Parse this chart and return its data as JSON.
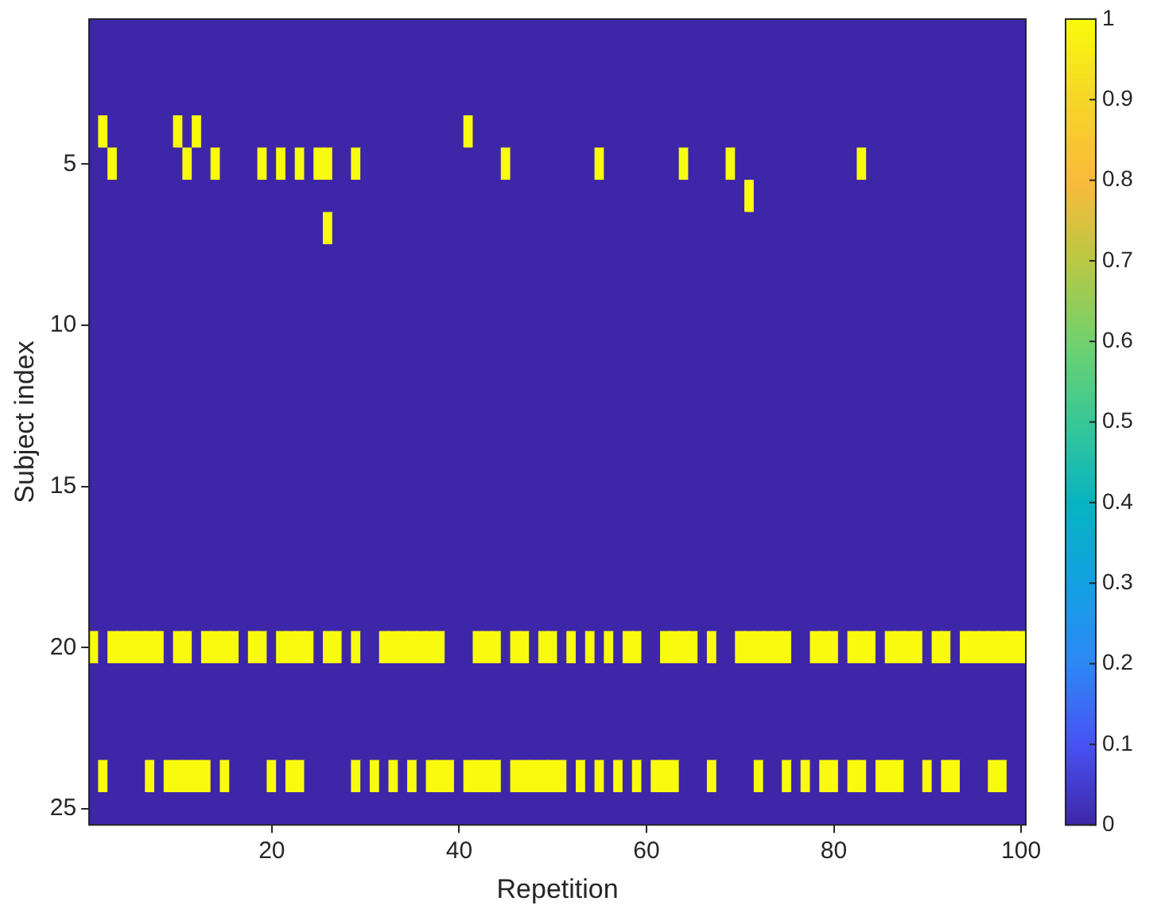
{
  "chart_data": {
    "type": "heatmap",
    "xlabel": "Repetition",
    "ylabel": "Subject index",
    "categories": [
      null,
      null,
      null,
      null,
      null,
      null,
      null,
      null,
      null,
      null,
      null,
      null,
      null,
      null,
      null,
      null,
      null,
      null,
      null,
      "20",
      null,
      null,
      null,
      null,
      null,
      null,
      null,
      null,
      null,
      null,
      null,
      null,
      null,
      null,
      null,
      null,
      null,
      null,
      null,
      "40",
      null,
      null,
      null,
      null,
      null,
      null,
      null,
      null,
      null,
      null,
      null,
      null,
      null,
      null,
      null,
      null,
      null,
      null,
      null,
      "60",
      null,
      null,
      null,
      null,
      null,
      null,
      null,
      null,
      null,
      null,
      null,
      null,
      null,
      null,
      null,
      null,
      null,
      null,
      null,
      "80",
      null,
      null,
      null,
      null,
      null,
      null,
      null,
      null,
      null,
      null,
      null,
      null,
      null,
      null,
      null,
      null,
      null,
      null,
      null,
      "100"
    ],
    "y_categories": [
      null,
      null,
      null,
      null,
      "5",
      null,
      null,
      null,
      null,
      "10",
      null,
      null,
      null,
      null,
      "15",
      null,
      null,
      null,
      null,
      "20",
      null,
      null,
      null,
      null,
      "25"
    ],
    "cells": [
      [
        0,
        0,
        0,
        0,
        0,
        0,
        0,
        0,
        0,
        0,
        0,
        0,
        0,
        0,
        0,
        0,
        0,
        0,
        0,
        0,
        0,
        0,
        0,
        0,
        0,
        0,
        0,
        0,
        0,
        0,
        0,
        0,
        0,
        0,
        0,
        0,
        0,
        0,
        0,
        0,
        0,
        0,
        0,
        0,
        0,
        0,
        0,
        0,
        0,
        0,
        0,
        0,
        0,
        0,
        0,
        0,
        0,
        0,
        0,
        0,
        0,
        0,
        0,
        0,
        0,
        0,
        0,
        0,
        0,
        0,
        0,
        0,
        0,
        0,
        0,
        0,
        0,
        0,
        0,
        0,
        0,
        0,
        0,
        0,
        0,
        0,
        0,
        0,
        0,
        0,
        0,
        0,
        0,
        0,
        0,
        0,
        0,
        0,
        0,
        0
      ],
      [
        0,
        0,
        0,
        0,
        0,
        0,
        0,
        0,
        0,
        0,
        0,
        0,
        0,
        0,
        0,
        0,
        0,
        0,
        0,
        0,
        0,
        0,
        0,
        0,
        0,
        0,
        0,
        0,
        0,
        0,
        0,
        0,
        0,
        0,
        0,
        0,
        0,
        0,
        0,
        0,
        0,
        0,
        0,
        0,
        0,
        0,
        0,
        0,
        0,
        0,
        0,
        0,
        0,
        0,
        0,
        0,
        0,
        0,
        0,
        0,
        0,
        0,
        0,
        0,
        0,
        0,
        0,
        0,
        0,
        0,
        0,
        0,
        0,
        0,
        0,
        0,
        0,
        0,
        0,
        0,
        0,
        0,
        0,
        0,
        0,
        0,
        0,
        0,
        0,
        0,
        0,
        0,
        0,
        0,
        0,
        0,
        0,
        0,
        0,
        0
      ],
      [
        0,
        0,
        0,
        0,
        0,
        0,
        0,
        0,
        0,
        0,
        0,
        0,
        0,
        0,
        0,
        0,
        0,
        0,
        0,
        0,
        0,
        0,
        0,
        0,
        0,
        0,
        0,
        0,
        0,
        0,
        0,
        0,
        0,
        0,
        0,
        0,
        0,
        0,
        0,
        0,
        0,
        0,
        0,
        0,
        0,
        0,
        0,
        0,
        0,
        0,
        0,
        0,
        0,
        0,
        0,
        0,
        0,
        0,
        0,
        0,
        0,
        0,
        0,
        0,
        0,
        0,
        0,
        0,
        0,
        0,
        0,
        0,
        0,
        0,
        0,
        0,
        0,
        0,
        0,
        0,
        0,
        0,
        0,
        0,
        0,
        0,
        0,
        0,
        0,
        0,
        0,
        0,
        0,
        0,
        0,
        0,
        0,
        0,
        0,
        0
      ],
      [
        0,
        1,
        0,
        0,
        0,
        0,
        0,
        0,
        0,
        1,
        0,
        1,
        0,
        0,
        0,
        0,
        0,
        0,
        0,
        0,
        0,
        0,
        0,
        0,
        0,
        0,
        0,
        0,
        0,
        0,
        0,
        0,
        0,
        0,
        0,
        0,
        0,
        0,
        0,
        0,
        1,
        0,
        0,
        0,
        0,
        0,
        0,
        0,
        0,
        0,
        0,
        0,
        0,
        0,
        0,
        0,
        0,
        0,
        0,
        0,
        0,
        0,
        0,
        0,
        0,
        0,
        0,
        0,
        0,
        0,
        0,
        0,
        0,
        0,
        0,
        0,
        0,
        0,
        0,
        0,
        0,
        0,
        0,
        0,
        0,
        0,
        0,
        0,
        0,
        0,
        0,
        0,
        0,
        0,
        0,
        0,
        0,
        0,
        0,
        0
      ],
      [
        0,
        0,
        1,
        0,
        0,
        0,
        0,
        0,
        0,
        0,
        1,
        0,
        0,
        1,
        0,
        0,
        0,
        0,
        1,
        0,
        1,
        0,
        1,
        0,
        1,
        1,
        0,
        0,
        1,
        0,
        0,
        0,
        0,
        0,
        0,
        0,
        0,
        0,
        0,
        0,
        0,
        0,
        0,
        0,
        1,
        0,
        0,
        0,
        0,
        0,
        0,
        0,
        0,
        0,
        1,
        0,
        0,
        0,
        0,
        0,
        0,
        0,
        0,
        1,
        0,
        0,
        0,
        0,
        1,
        0,
        0,
        0,
        0,
        0,
        0,
        0,
        0,
        0,
        0,
        0,
        0,
        0,
        1,
        0,
        0,
        0,
        0,
        0,
        0,
        0,
        0,
        0,
        0,
        0,
        0,
        0,
        0,
        0,
        0,
        0
      ],
      [
        0,
        0,
        0,
        0,
        0,
        0,
        0,
        0,
        0,
        0,
        0,
        0,
        0,
        0,
        0,
        0,
        0,
        0,
        0,
        0,
        0,
        0,
        0,
        0,
        0,
        0,
        0,
        0,
        0,
        0,
        0,
        0,
        0,
        0,
        0,
        0,
        0,
        0,
        0,
        0,
        0,
        0,
        0,
        0,
        0,
        0,
        0,
        0,
        0,
        0,
        0,
        0,
        0,
        0,
        0,
        0,
        0,
        0,
        0,
        0,
        0,
        0,
        0,
        0,
        0,
        0,
        0,
        0,
        0,
        0,
        1,
        0,
        0,
        0,
        0,
        0,
        0,
        0,
        0,
        0,
        0,
        0,
        0,
        0,
        0,
        0,
        0,
        0,
        0,
        0,
        0,
        0,
        0,
        0,
        0,
        0,
        0,
        0,
        0,
        0
      ],
      [
        0,
        0,
        0,
        0,
        0,
        0,
        0,
        0,
        0,
        0,
        0,
        0,
        0,
        0,
        0,
        0,
        0,
        0,
        0,
        0,
        0,
        0,
        0,
        0,
        0,
        1,
        0,
        0,
        0,
        0,
        0,
        0,
        0,
        0,
        0,
        0,
        0,
        0,
        0,
        0,
        0,
        0,
        0,
        0,
        0,
        0,
        0,
        0,
        0,
        0,
        0,
        0,
        0,
        0,
        0,
        0,
        0,
        0,
        0,
        0,
        0,
        0,
        0,
        0,
        0,
        0,
        0,
        0,
        0,
        0,
        0,
        0,
        0,
        0,
        0,
        0,
        0,
        0,
        0,
        0,
        0,
        0,
        0,
        0,
        0,
        0,
        0,
        0,
        0,
        0,
        0,
        0,
        0,
        0,
        0,
        0,
        0,
        0,
        0,
        0
      ],
      [
        0,
        0,
        0,
        0,
        0,
        0,
        0,
        0,
        0,
        0,
        0,
        0,
        0,
        0,
        0,
        0,
        0,
        0,
        0,
        0,
        0,
        0,
        0,
        0,
        0,
        0,
        0,
        0,
        0,
        0,
        0,
        0,
        0,
        0,
        0,
        0,
        0,
        0,
        0,
        0,
        0,
        0,
        0,
        0,
        0,
        0,
        0,
        0,
        0,
        0,
        0,
        0,
        0,
        0,
        0,
        0,
        0,
        0,
        0,
        0,
        0,
        0,
        0,
        0,
        0,
        0,
        0,
        0,
        0,
        0,
        0,
        0,
        0,
        0,
        0,
        0,
        0,
        0,
        0,
        0,
        0,
        0,
        0,
        0,
        0,
        0,
        0,
        0,
        0,
        0,
        0,
        0,
        0,
        0,
        0,
        0,
        0,
        0,
        0,
        0
      ],
      [
        0,
        0,
        0,
        0,
        0,
        0,
        0,
        0,
        0,
        0,
        0,
        0,
        0,
        0,
        0,
        0,
        0,
        0,
        0,
        0,
        0,
        0,
        0,
        0,
        0,
        0,
        0,
        0,
        0,
        0,
        0,
        0,
        0,
        0,
        0,
        0,
        0,
        0,
        0,
        0,
        0,
        0,
        0,
        0,
        0,
        0,
        0,
        0,
        0,
        0,
        0,
        0,
        0,
        0,
        0,
        0,
        0,
        0,
        0,
        0,
        0,
        0,
        0,
        0,
        0,
        0,
        0,
        0,
        0,
        0,
        0,
        0,
        0,
        0,
        0,
        0,
        0,
        0,
        0,
        0,
        0,
        0,
        0,
        0,
        0,
        0,
        0,
        0,
        0,
        0,
        0,
        0,
        0,
        0,
        0,
        0,
        0,
        0,
        0,
        0
      ],
      [
        0,
        0,
        0,
        0,
        0,
        0,
        0,
        0,
        0,
        0,
        0,
        0,
        0,
        0,
        0,
        0,
        0,
        0,
        0,
        0,
        0,
        0,
        0,
        0,
        0,
        0,
        0,
        0,
        0,
        0,
        0,
        0,
        0,
        0,
        0,
        0,
        0,
        0,
        0,
        0,
        0,
        0,
        0,
        0,
        0,
        0,
        0,
        0,
        0,
        0,
        0,
        0,
        0,
        0,
        0,
        0,
        0,
        0,
        0,
        0,
        0,
        0,
        0,
        0,
        0,
        0,
        0,
        0,
        0,
        0,
        0,
        0,
        0,
        0,
        0,
        0,
        0,
        0,
        0,
        0,
        0,
        0,
        0,
        0,
        0,
        0,
        0,
        0,
        0,
        0,
        0,
        0,
        0,
        0,
        0,
        0,
        0,
        0,
        0,
        0
      ],
      [
        0,
        0,
        0,
        0,
        0,
        0,
        0,
        0,
        0,
        0,
        0,
        0,
        0,
        0,
        0,
        0,
        0,
        0,
        0,
        0,
        0,
        0,
        0,
        0,
        0,
        0,
        0,
        0,
        0,
        0,
        0,
        0,
        0,
        0,
        0,
        0,
        0,
        0,
        0,
        0,
        0,
        0,
        0,
        0,
        0,
        0,
        0,
        0,
        0,
        0,
        0,
        0,
        0,
        0,
        0,
        0,
        0,
        0,
        0,
        0,
        0,
        0,
        0,
        0,
        0,
        0,
        0,
        0,
        0,
        0,
        0,
        0,
        0,
        0,
        0,
        0,
        0,
        0,
        0,
        0,
        0,
        0,
        0,
        0,
        0,
        0,
        0,
        0,
        0,
        0,
        0,
        0,
        0,
        0,
        0,
        0,
        0,
        0,
        0,
        0
      ],
      [
        0,
        0,
        0,
        0,
        0,
        0,
        0,
        0,
        0,
        0,
        0,
        0,
        0,
        0,
        0,
        0,
        0,
        0,
        0,
        0,
        0,
        0,
        0,
        0,
        0,
        0,
        0,
        0,
        0,
        0,
        0,
        0,
        0,
        0,
        0,
        0,
        0,
        0,
        0,
        0,
        0,
        0,
        0,
        0,
        0,
        0,
        0,
        0,
        0,
        0,
        0,
        0,
        0,
        0,
        0,
        0,
        0,
        0,
        0,
        0,
        0,
        0,
        0,
        0,
        0,
        0,
        0,
        0,
        0,
        0,
        0,
        0,
        0,
        0,
        0,
        0,
        0,
        0,
        0,
        0,
        0,
        0,
        0,
        0,
        0,
        0,
        0,
        0,
        0,
        0,
        0,
        0,
        0,
        0,
        0,
        0,
        0,
        0,
        0,
        0
      ],
      [
        0,
        0,
        0,
        0,
        0,
        0,
        0,
        0,
        0,
        0,
        0,
        0,
        0,
        0,
        0,
        0,
        0,
        0,
        0,
        0,
        0,
        0,
        0,
        0,
        0,
        0,
        0,
        0,
        0,
        0,
        0,
        0,
        0,
        0,
        0,
        0,
        0,
        0,
        0,
        0,
        0,
        0,
        0,
        0,
        0,
        0,
        0,
        0,
        0,
        0,
        0,
        0,
        0,
        0,
        0,
        0,
        0,
        0,
        0,
        0,
        0,
        0,
        0,
        0,
        0,
        0,
        0,
        0,
        0,
        0,
        0,
        0,
        0,
        0,
        0,
        0,
        0,
        0,
        0,
        0,
        0,
        0,
        0,
        0,
        0,
        0,
        0,
        0,
        0,
        0,
        0,
        0,
        0,
        0,
        0,
        0,
        0,
        0,
        0,
        0
      ],
      [
        0,
        0,
        0,
        0,
        0,
        0,
        0,
        0,
        0,
        0,
        0,
        0,
        0,
        0,
        0,
        0,
        0,
        0,
        0,
        0,
        0,
        0,
        0,
        0,
        0,
        0,
        0,
        0,
        0,
        0,
        0,
        0,
        0,
        0,
        0,
        0,
        0,
        0,
        0,
        0,
        0,
        0,
        0,
        0,
        0,
        0,
        0,
        0,
        0,
        0,
        0,
        0,
        0,
        0,
        0,
        0,
        0,
        0,
        0,
        0,
        0,
        0,
        0,
        0,
        0,
        0,
        0,
        0,
        0,
        0,
        0,
        0,
        0,
        0,
        0,
        0,
        0,
        0,
        0,
        0,
        0,
        0,
        0,
        0,
        0,
        0,
        0,
        0,
        0,
        0,
        0,
        0,
        0,
        0,
        0,
        0,
        0,
        0,
        0,
        0
      ],
      [
        0,
        0,
        0,
        0,
        0,
        0,
        0,
        0,
        0,
        0,
        0,
        0,
        0,
        0,
        0,
        0,
        0,
        0,
        0,
        0,
        0,
        0,
        0,
        0,
        0,
        0,
        0,
        0,
        0,
        0,
        0,
        0,
        0,
        0,
        0,
        0,
        0,
        0,
        0,
        0,
        0,
        0,
        0,
        0,
        0,
        0,
        0,
        0,
        0,
        0,
        0,
        0,
        0,
        0,
        0,
        0,
        0,
        0,
        0,
        0,
        0,
        0,
        0,
        0,
        0,
        0,
        0,
        0,
        0,
        0,
        0,
        0,
        0,
        0,
        0,
        0,
        0,
        0,
        0,
        0,
        0,
        0,
        0,
        0,
        0,
        0,
        0,
        0,
        0,
        0,
        0,
        0,
        0,
        0,
        0,
        0,
        0,
        0,
        0,
        0
      ],
      [
        0,
        0,
        0,
        0,
        0,
        0,
        0,
        0,
        0,
        0,
        0,
        0,
        0,
        0,
        0,
        0,
        0,
        0,
        0,
        0,
        0,
        0,
        0,
        0,
        0,
        0,
        0,
        0,
        0,
        0,
        0,
        0,
        0,
        0,
        0,
        0,
        0,
        0,
        0,
        0,
        0,
        0,
        0,
        0,
        0,
        0,
        0,
        0,
        0,
        0,
        0,
        0,
        0,
        0,
        0,
        0,
        0,
        0,
        0,
        0,
        0,
        0,
        0,
        0,
        0,
        0,
        0,
        0,
        0,
        0,
        0,
        0,
        0,
        0,
        0,
        0,
        0,
        0,
        0,
        0,
        0,
        0,
        0,
        0,
        0,
        0,
        0,
        0,
        0,
        0,
        0,
        0,
        0,
        0,
        0,
        0,
        0,
        0,
        0,
        0
      ],
      [
        0,
        0,
        0,
        0,
        0,
        0,
        0,
        0,
        0,
        0,
        0,
        0,
        0,
        0,
        0,
        0,
        0,
        0,
        0,
        0,
        0,
        0,
        0,
        0,
        0,
        0,
        0,
        0,
        0,
        0,
        0,
        0,
        0,
        0,
        0,
        0,
        0,
        0,
        0,
        0,
        0,
        0,
        0,
        0,
        0,
        0,
        0,
        0,
        0,
        0,
        0,
        0,
        0,
        0,
        0,
        0,
        0,
        0,
        0,
        0,
        0,
        0,
        0,
        0,
        0,
        0,
        0,
        0,
        0,
        0,
        0,
        0,
        0,
        0,
        0,
        0,
        0,
        0,
        0,
        0,
        0,
        0,
        0,
        0,
        0,
        0,
        0,
        0,
        0,
        0,
        0,
        0,
        0,
        0,
        0,
        0,
        0,
        0,
        0,
        0
      ],
      [
        0,
        0,
        0,
        0,
        0,
        0,
        0,
        0,
        0,
        0,
        0,
        0,
        0,
        0,
        0,
        0,
        0,
        0,
        0,
        0,
        0,
        0,
        0,
        0,
        0,
        0,
        0,
        0,
        0,
        0,
        0,
        0,
        0,
        0,
        0,
        0,
        0,
        0,
        0,
        0,
        0,
        0,
        0,
        0,
        0,
        0,
        0,
        0,
        0,
        0,
        0,
        0,
        0,
        0,
        0,
        0,
        0,
        0,
        0,
        0,
        0,
        0,
        0,
        0,
        0,
        0,
        0,
        0,
        0,
        0,
        0,
        0,
        0,
        0,
        0,
        0,
        0,
        0,
        0,
        0,
        0,
        0,
        0,
        0,
        0,
        0,
        0,
        0,
        0,
        0,
        0,
        0,
        0,
        0,
        0,
        0,
        0,
        0,
        0,
        0
      ],
      [
        0,
        0,
        0,
        0,
        0,
        0,
        0,
        0,
        0,
        0,
        0,
        0,
        0,
        0,
        0,
        0,
        0,
        0,
        0,
        0,
        0,
        0,
        0,
        0,
        0,
        0,
        0,
        0,
        0,
        0,
        0,
        0,
        0,
        0,
        0,
        0,
        0,
        0,
        0,
        0,
        0,
        0,
        0,
        0,
        0,
        0,
        0,
        0,
        0,
        0,
        0,
        0,
        0,
        0,
        0,
        0,
        0,
        0,
        0,
        0,
        0,
        0,
        0,
        0,
        0,
        0,
        0,
        0,
        0,
        0,
        0,
        0,
        0,
        0,
        0,
        0,
        0,
        0,
        0,
        0,
        0,
        0,
        0,
        0,
        0,
        0,
        0,
        0,
        0,
        0,
        0,
        0,
        0,
        0,
        0,
        0,
        0,
        0,
        0,
        0
      ],
      [
        1,
        0,
        1,
        1,
        1,
        1,
        1,
        1,
        0,
        1,
        1,
        0,
        1,
        1,
        1,
        1,
        0,
        1,
        1,
        0,
        1,
        1,
        1,
        1,
        0,
        1,
        1,
        0,
        1,
        0,
        0,
        1,
        1,
        1,
        1,
        1,
        1,
        1,
        0,
        0,
        0,
        1,
        1,
        1,
        0,
        1,
        1,
        0,
        1,
        1,
        0,
        1,
        0,
        1,
        0,
        1,
        0,
        1,
        1,
        0,
        0,
        1,
        1,
        1,
        1,
        0,
        1,
        0,
        0,
        1,
        1,
        1,
        1,
        1,
        1,
        0,
        0,
        1,
        1,
        1,
        0,
        1,
        1,
        1,
        0,
        1,
        1,
        1,
        1,
        0,
        1,
        1,
        0,
        1,
        1,
        1,
        1,
        1,
        1,
        1
      ],
      [
        0,
        0,
        0,
        0,
        0,
        0,
        0,
        0,
        0,
        0,
        0,
        0,
        0,
        0,
        0,
        0,
        0,
        0,
        0,
        0,
        0,
        0,
        0,
        0,
        0,
        0,
        0,
        0,
        0,
        0,
        0,
        0,
        0,
        0,
        0,
        0,
        0,
        0,
        0,
        0,
        0,
        0,
        0,
        0,
        0,
        0,
        0,
        0,
        0,
        0,
        0,
        0,
        0,
        0,
        0,
        0,
        0,
        0,
        0,
        0,
        0,
        0,
        0,
        0,
        0,
        0,
        0,
        0,
        0,
        0,
        0,
        0,
        0,
        0,
        0,
        0,
        0,
        0,
        0,
        0,
        0,
        0,
        0,
        0,
        0,
        0,
        0,
        0,
        0,
        0,
        0,
        0,
        0,
        0,
        0,
        0,
        0,
        0,
        0,
        0
      ],
      [
        0,
        0,
        0,
        0,
        0,
        0,
        0,
        0,
        0,
        0,
        0,
        0,
        0,
        0,
        0,
        0,
        0,
        0,
        0,
        0,
        0,
        0,
        0,
        0,
        0,
        0,
        0,
        0,
        0,
        0,
        0,
        0,
        0,
        0,
        0,
        0,
        0,
        0,
        0,
        0,
        0,
        0,
        0,
        0,
        0,
        0,
        0,
        0,
        0,
        0,
        0,
        0,
        0,
        0,
        0,
        0,
        0,
        0,
        0,
        0,
        0,
        0,
        0,
        0,
        0,
        0,
        0,
        0,
        0,
        0,
        0,
        0,
        0,
        0,
        0,
        0,
        0,
        0,
        0,
        0,
        0,
        0,
        0,
        0,
        0,
        0,
        0,
        0,
        0,
        0,
        0,
        0,
        0,
        0,
        0,
        0,
        0,
        0,
        0,
        0
      ],
      [
        0,
        0,
        0,
        0,
        0,
        0,
        0,
        0,
        0,
        0,
        0,
        0,
        0,
        0,
        0,
        0,
        0,
        0,
        0,
        0,
        0,
        0,
        0,
        0,
        0,
        0,
        0,
        0,
        0,
        0,
        0,
        0,
        0,
        0,
        0,
        0,
        0,
        0,
        0,
        0,
        0,
        0,
        0,
        0,
        0,
        0,
        0,
        0,
        0,
        0,
        0,
        0,
        0,
        0,
        0,
        0,
        0,
        0,
        0,
        0,
        0,
        0,
        0,
        0,
        0,
        0,
        0,
        0,
        0,
        0,
        0,
        0,
        0,
        0,
        0,
        0,
        0,
        0,
        0,
        0,
        0,
        0,
        0,
        0,
        0,
        0,
        0,
        0,
        0,
        0,
        0,
        0,
        0,
        0,
        0,
        0,
        0,
        0,
        0,
        0
      ],
      [
        0,
        1,
        0,
        0,
        0,
        0,
        1,
        0,
        1,
        1,
        1,
        1,
        1,
        0,
        1,
        0,
        0,
        0,
        0,
        1,
        0,
        1,
        1,
        0,
        0,
        0,
        0,
        0,
        1,
        0,
        1,
        0,
        1,
        0,
        1,
        0,
        1,
        1,
        1,
        0,
        1,
        1,
        1,
        1,
        0,
        1,
        1,
        1,
        1,
        1,
        1,
        0,
        1,
        0,
        1,
        0,
        1,
        0,
        1,
        0,
        1,
        1,
        1,
        0,
        0,
        0,
        1,
        0,
        0,
        0,
        0,
        1,
        0,
        0,
        1,
        0,
        1,
        0,
        1,
        1,
        0,
        1,
        1,
        0,
        1,
        1,
        1,
        0,
        0,
        1,
        0,
        1,
        1,
        0,
        0,
        0,
        1,
        1,
        0,
        0
      ],
      [
        0,
        0,
        0,
        0,
        0,
        0,
        0,
        0,
        0,
        0,
        0,
        0,
        0,
        0,
        0,
        0,
        0,
        0,
        0,
        0,
        0,
        0,
        0,
        0,
        0,
        0,
        0,
        0,
        0,
        0,
        0,
        0,
        0,
        0,
        0,
        0,
        0,
        0,
        0,
        0,
        0,
        0,
        0,
        0,
        0,
        0,
        0,
        0,
        0,
        0,
        0,
        0,
        0,
        0,
        0,
        0,
        0,
        0,
        0,
        0,
        0,
        0,
        0,
        0,
        0,
        0,
        0,
        0,
        0,
        0,
        0,
        0,
        0,
        0,
        0,
        0,
        0,
        0,
        0,
        0,
        0,
        0,
        0,
        0,
        0,
        0,
        0,
        0,
        0,
        0,
        0,
        0,
        0,
        0,
        0,
        0,
        0,
        0,
        0,
        0
      ]
    ],
    "clim": [
      0,
      1
    ],
    "cticks": [
      0,
      0.1,
      0.2,
      0.3,
      0.4,
      0.5,
      0.6,
      0.7,
      0.8,
      0.9,
      1
    ]
  }
}
